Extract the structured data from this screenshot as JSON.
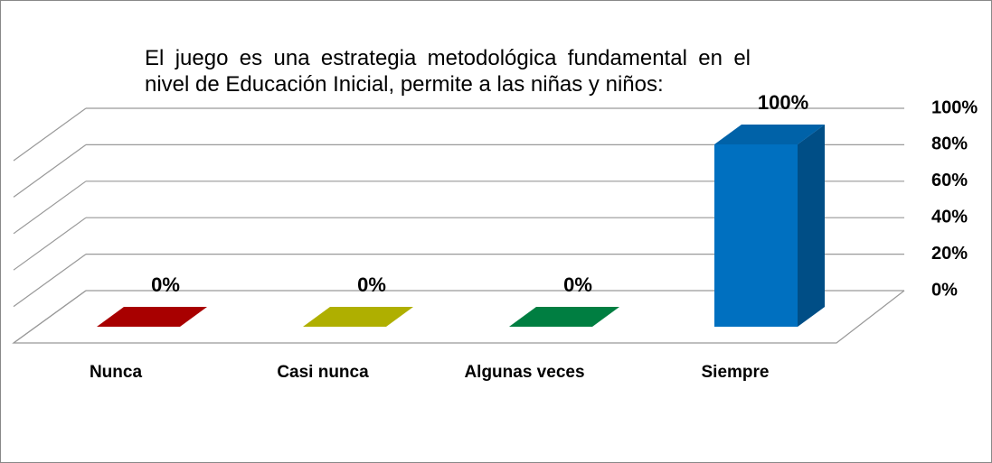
{
  "chart_data": {
    "type": "bar",
    "title": "El juego es una estrategia metodológica fundamental en el nivel de Educación Inicial, permite a las niñas y niños:",
    "categories": [
      "Nunca",
      "Casi nunca",
      "Algunas veces",
      "Siempre"
    ],
    "values": [
      0,
      0,
      0,
      100
    ],
    "value_labels": [
      "0%",
      "0%",
      "0%",
      "100%"
    ],
    "colors": [
      "#c00000",
      "#c8c800",
      "#00904a",
      "#0070c0"
    ],
    "ylim": [
      0,
      100
    ],
    "yticks": [
      {
        "value": 0,
        "label": "0%"
      },
      {
        "value": 20,
        "label": "20%"
      },
      {
        "value": 40,
        "label": "40%"
      },
      {
        "value": 60,
        "label": "60%"
      },
      {
        "value": 80,
        "label": "80%"
      },
      {
        "value": 100,
        "label": "100%"
      }
    ],
    "grid": true
  }
}
